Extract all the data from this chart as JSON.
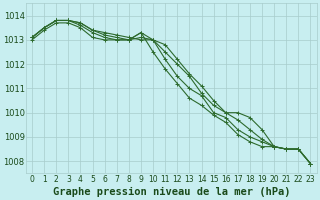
{
  "title": "Graphe pression niveau de la mer (hPa)",
  "xlabel_hours": [
    0,
    1,
    2,
    3,
    4,
    5,
    6,
    7,
    8,
    9,
    10,
    11,
    12,
    13,
    14,
    15,
    16,
    17,
    18,
    19,
    20,
    21,
    22,
    23
  ],
  "series": [
    [
      1013.1,
      1013.5,
      1013.8,
      1013.8,
      1013.7,
      1013.4,
      1013.3,
      1013.2,
      1013.1,
      1013.0,
      1013.0,
      1012.8,
      1012.2,
      1011.6,
      1011.1,
      1010.5,
      1010.0,
      1010.0,
      1009.8,
      1009.3,
      1008.6,
      1008.5,
      1008.5,
      1007.9
    ],
    [
      1013.1,
      1013.5,
      1013.8,
      1013.8,
      1013.7,
      1013.4,
      1013.2,
      1013.1,
      1013.0,
      1013.1,
      1013.0,
      1012.5,
      1012.0,
      1011.5,
      1010.8,
      1010.3,
      1010.0,
      1009.7,
      1009.3,
      1008.9,
      1008.6,
      1008.5,
      1008.5,
      1007.9
    ],
    [
      1013.1,
      1013.5,
      1013.8,
      1013.8,
      1013.6,
      1013.3,
      1013.1,
      1013.0,
      1013.0,
      1013.3,
      1013.0,
      1012.2,
      1011.5,
      1011.0,
      1010.7,
      1010.0,
      1009.8,
      1009.3,
      1009.0,
      1008.8,
      1008.6,
      1008.5,
      1008.5,
      1007.9
    ],
    [
      1013.0,
      1013.4,
      1013.7,
      1013.7,
      1013.5,
      1013.1,
      1013.0,
      1013.0,
      1013.0,
      1013.3,
      1012.5,
      1011.8,
      1011.2,
      1010.6,
      1010.3,
      1009.9,
      1009.6,
      1009.1,
      1008.8,
      1008.6,
      1008.6,
      1008.5,
      1008.5,
      1007.9
    ]
  ],
  "line_color": "#2d6a2d",
  "marker_color": "#2d6a2d",
  "bg_color": "#c8eef0",
  "grid_color": "#a8cccc",
  "axis_label_color": "#1a4a1a",
  "tick_label_color": "#1a4a1a",
  "ylim": [
    1007.5,
    1014.5
  ],
  "yticks": [
    1008,
    1009,
    1010,
    1011,
    1012,
    1013,
    1014
  ],
  "title_fontsize": 7.5,
  "tick_fontsize": 6.0,
  "line_width": 0.8,
  "marker_size": 2.5
}
